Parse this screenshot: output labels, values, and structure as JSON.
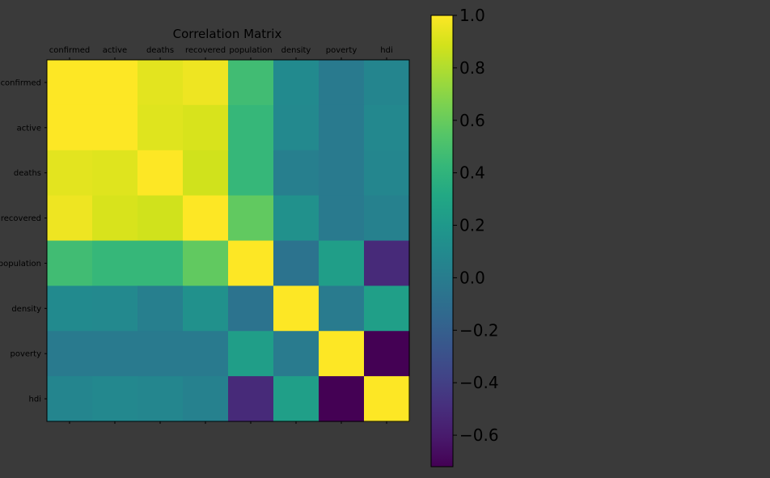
{
  "chart_data": {
    "type": "heatmap",
    "title": "Correlation Matrix",
    "x_categories": [
      "confirmed",
      "active",
      "deaths",
      "recovered",
      "population",
      "density",
      "poverty",
      "hdi"
    ],
    "y_categories": [
      "confirmed",
      "active",
      "deaths",
      "recovered",
      "population",
      "density",
      "poverty",
      "hdi"
    ],
    "values": [
      [
        1.0,
        1.0,
        0.93,
        0.96,
        0.47,
        0.1,
        -0.02,
        0.06
      ],
      [
        1.0,
        1.0,
        0.92,
        0.9,
        0.43,
        0.09,
        -0.02,
        0.08
      ],
      [
        0.93,
        0.92,
        1.0,
        0.88,
        0.43,
        0.02,
        -0.02,
        0.07
      ],
      [
        0.96,
        0.9,
        0.88,
        1.0,
        0.58,
        0.15,
        -0.02,
        0.03
      ],
      [
        0.47,
        0.43,
        0.43,
        0.58,
        1.0,
        -0.07,
        0.24,
        -0.52
      ],
      [
        0.1,
        0.09,
        0.02,
        0.15,
        -0.07,
        1.0,
        -0.01,
        0.25
      ],
      [
        -0.02,
        -0.02,
        -0.02,
        -0.02,
        0.24,
        -0.01,
        1.0,
        -0.72
      ],
      [
        0.06,
        0.08,
        0.07,
        0.03,
        -0.52,
        0.25,
        -0.72,
        1.0
      ]
    ],
    "colormap": "viridis",
    "vmin": -0.72,
    "vmax": 1.0,
    "colorbar_ticks": [
      "1.0",
      "0.8",
      "0.6",
      "0.4",
      "0.2",
      "0.0",
      "−0.2",
      "−0.4",
      "−0.6"
    ],
    "colorbar_tick_values": [
      1.0,
      0.8,
      0.6,
      0.4,
      0.2,
      0.0,
      -0.2,
      -0.4,
      -0.6
    ],
    "x_tick_position": "top",
    "grid": false
  },
  "colors": {
    "background": "#3a3a3a",
    "text": "#000000"
  }
}
